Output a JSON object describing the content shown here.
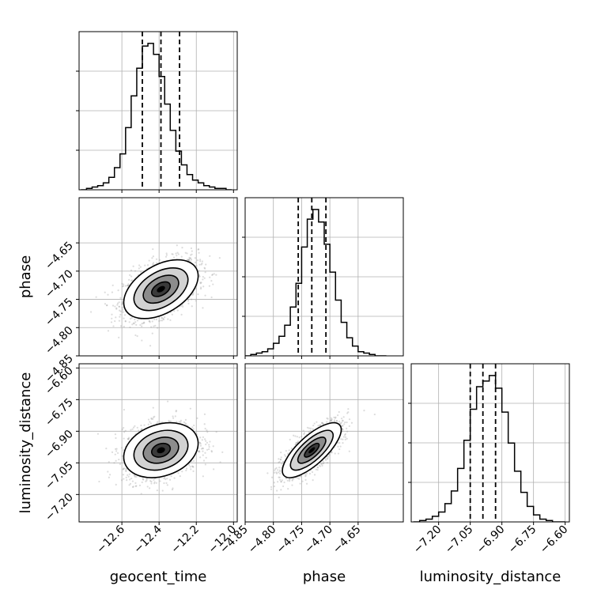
{
  "chart_data": {
    "type": "corner",
    "parameters": [
      "geocent_time",
      "phase",
      "luminosity_distance"
    ],
    "axis_labels": {
      "x": [
        "geocent_time",
        "phase",
        "luminosity_distance"
      ],
      "y": [
        "",
        "phase",
        "luminosity_distance"
      ]
    },
    "ranges": {
      "geocent_time": [
        -12.83,
        -11.98
      ],
      "phase": [
        -4.85,
        -4.57
      ],
      "luminosity_distance": [
        -7.33,
        -6.58
      ]
    },
    "ticks": {
      "geocent_time": [
        -12.6,
        -12.4,
        -12.2,
        -12.0
      ],
      "phase": [
        -4.85,
        -4.8,
        -4.75,
        -4.7,
        -4.65
      ],
      "luminosity_distance": [
        -7.2,
        -7.05,
        -6.9,
        -6.75,
        -6.6
      ]
    },
    "tick_labels": {
      "geocent_time": [
        "−12.6",
        "−12.4",
        "−12.2",
        "−12.0"
      ],
      "phase": [
        "−4.85",
        "−4.80",
        "−4.75",
        "−4.70",
        "−4.65"
      ],
      "luminosity_distance": [
        "−7.20",
        "−7.05",
        "−6.90",
        "−6.75",
        "−6.60"
      ]
    },
    "quantiles": {
      "geocent_time": [
        -12.49,
        -12.39,
        -12.29
      ],
      "phase": [
        -4.756,
        -4.732,
        -4.707
      ],
      "luminosity_distance": [
        -7.05,
        -6.99,
        -6.93
      ]
    },
    "histograms": {
      "geocent_time": {
        "edges": [
          -12.82,
          -12.79,
          -12.76,
          -12.73,
          -12.7,
          -12.67,
          -12.64,
          -12.61,
          -12.58,
          -12.55,
          -12.52,
          -12.49,
          -12.46,
          -12.43,
          -12.4,
          -12.37,
          -12.34,
          -12.31,
          -12.28,
          -12.25,
          -12.22,
          -12.19,
          -12.16,
          -12.13,
          -12.1,
          -12.07,
          -12.04,
          -12.01
        ],
        "counts": [
          0,
          1,
          2,
          3,
          5,
          9,
          16,
          26,
          45,
          68,
          88,
          104,
          106,
          98,
          82,
          62,
          43,
          28,
          18,
          11,
          7,
          5,
          3,
          2,
          1,
          1,
          0
        ]
      },
      "phase": {
        "edges": [
          -4.85,
          -4.84,
          -4.83,
          -4.82,
          -4.81,
          -4.8,
          -4.79,
          -4.78,
          -4.77,
          -4.76,
          -4.75,
          -4.74,
          -4.73,
          -4.72,
          -4.71,
          -4.7,
          -4.69,
          -4.68,
          -4.67,
          -4.66,
          -4.65,
          -4.64,
          -4.63,
          -4.62,
          -4.61,
          -4.6
        ],
        "counts": [
          0,
          1,
          2,
          3,
          5,
          9,
          14,
          22,
          35,
          52,
          78,
          98,
          105,
          96,
          80,
          60,
          40,
          24,
          13,
          7,
          3,
          2,
          1,
          0,
          0
        ]
      },
      "luminosity_distance": {
        "edges": [
          -7.32,
          -7.29,
          -7.26,
          -7.23,
          -7.2,
          -7.17,
          -7.14,
          -7.11,
          -7.08,
          -7.05,
          -7.02,
          -6.99,
          -6.96,
          -6.93,
          -6.9,
          -6.87,
          -6.84,
          -6.81,
          -6.78,
          -6.75,
          -6.72,
          -6.69,
          -6.66,
          -6.63,
          -6.6
        ],
        "counts": [
          0,
          1,
          2,
          4,
          7,
          13,
          22,
          38,
          58,
          80,
          96,
          100,
          104,
          95,
          78,
          56,
          36,
          21,
          11,
          5,
          2,
          1,
          0,
          0
        ]
      }
    },
    "density": {
      "geocent_time_phase": {
        "mean": [
          -12.39,
          -4.732
        ],
        "sd": [
          0.1,
          0.026
        ],
        "corr": 0.45
      },
      "geocent_time_luminosity_distance": {
        "mean": [
          -12.39,
          -6.99
        ],
        "sd": [
          0.1,
          0.065
        ],
        "corr": 0.25
      },
      "phase_luminosity_distance": {
        "mean": [
          -4.732,
          -6.99
        ],
        "sd": [
          0.026,
          0.065
        ],
        "corr": 0.75
      }
    },
    "grid": true,
    "colors": {
      "line": "#000000",
      "grid": "#b0b0b0",
      "points": "#9a9a9a"
    }
  }
}
